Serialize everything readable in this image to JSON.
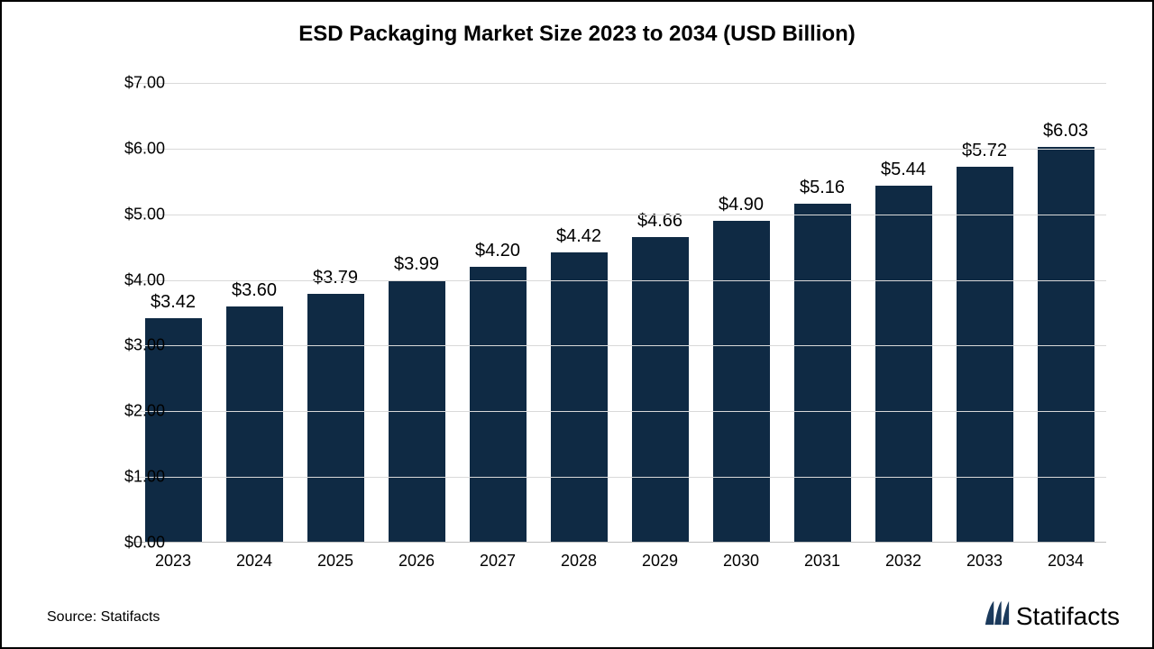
{
  "chart": {
    "type": "bar",
    "title": "ESD Packaging Market Size 2023 to 2034 (USD Billion)",
    "title_fontsize": 24,
    "title_fontweight": 700,
    "title_color": "#000000",
    "categories": [
      "2023",
      "2024",
      "2025",
      "2026",
      "2027",
      "2028",
      "2029",
      "2030",
      "2031",
      "2032",
      "2033",
      "2034"
    ],
    "values": [
      3.42,
      3.6,
      3.79,
      3.99,
      4.2,
      4.42,
      4.66,
      4.9,
      5.16,
      5.44,
      5.72,
      6.03
    ],
    "value_labels": [
      "$3.42",
      "$3.60",
      "$3.79",
      "$3.99",
      "$4.20",
      "$4.42",
      "$4.66",
      "$4.90",
      "$5.16",
      "$5.44",
      "$5.72",
      "$6.03"
    ],
    "bar_color": "#0f2a44",
    "bar_width_ratio": 0.7,
    "ylim": [
      0.0,
      7.0
    ],
    "ytick_step": 1.0,
    "ytick_labels": [
      "$0.00",
      "$1.00",
      "$2.00",
      "$3.00",
      "$4.00",
      "$5.00",
      "$6.00",
      "$7.00"
    ],
    "axis_label_fontsize": 18,
    "value_label_fontsize": 20,
    "background_color": "#ffffff",
    "grid_color": "#d9d9d9",
    "axis_color": "#bfbfbf",
    "text_color": "#000000",
    "border_color": "#000000"
  },
  "footer": {
    "source": "Source: Statifacts",
    "brand": "Statifacts",
    "brand_icon_color": "#1b3a5c"
  }
}
